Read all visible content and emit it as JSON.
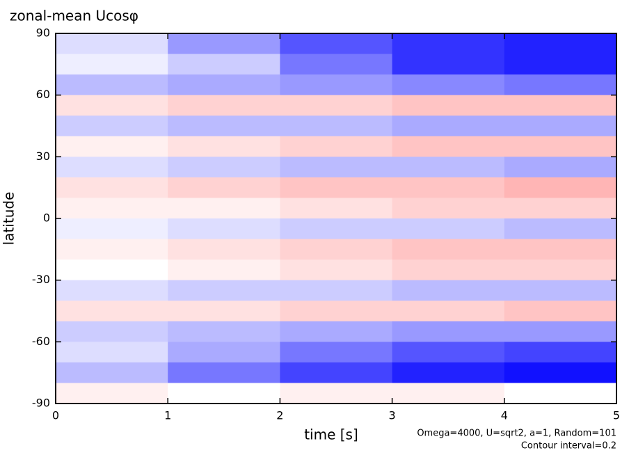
{
  "chart_data": {
    "type": "contour",
    "title": "zonal-mean Ucosφ",
    "xlabel": "time [s]",
    "ylabel": "latitude",
    "annotations": [
      "Omega=4000, U=sqrt2, a=1, Random=101",
      "Contour interval=0.2"
    ],
    "xlim": [
      0,
      5
    ],
    "xticks": [
      0,
      1,
      2,
      3,
      4,
      5
    ],
    "ylim": [
      -90,
      90
    ],
    "yticks": [
      -90,
      -60,
      -30,
      0,
      30,
      60,
      90
    ],
    "zlim": [
      -3,
      3
    ],
    "colors": [
      "#0000ff",
      "#ffffff",
      "#ff2020"
    ],
    "x": [
      0.5,
      1.5,
      2.5,
      3.5,
      4.5
    ],
    "y": [
      85,
      75,
      65,
      55,
      45,
      35,
      25,
      15,
      5,
      -5,
      -15,
      -25,
      -35,
      -45,
      -55,
      -65,
      -75,
      -85
    ],
    "z": [
      [
        -0.4,
        -1.2,
        -2.0,
        -2.4,
        -2.6
      ],
      [
        -0.2,
        -0.6,
        -1.6,
        -2.4,
        -2.6
      ],
      [
        -0.8,
        -1.0,
        -1.2,
        -1.4,
        -1.6
      ],
      [
        0.4,
        0.6,
        0.6,
        0.8,
        0.8
      ],
      [
        -0.6,
        -0.8,
        -0.8,
        -1.0,
        -1.0
      ],
      [
        0.2,
        0.4,
        0.6,
        0.8,
        0.8
      ],
      [
        -0.4,
        -0.6,
        -0.8,
        -0.8,
        -1.0
      ],
      [
        0.4,
        0.6,
        0.8,
        0.8,
        1.0
      ],
      [
        0.2,
        0.2,
        0.4,
        0.6,
        0.6
      ],
      [
        -0.2,
        -0.4,
        -0.6,
        -0.6,
        -0.8
      ],
      [
        0.2,
        0.4,
        0.6,
        0.8,
        0.8
      ],
      [
        0.0,
        0.2,
        0.4,
        0.6,
        0.6
      ],
      [
        -0.4,
        -0.6,
        -0.6,
        -0.8,
        -0.8
      ],
      [
        0.4,
        0.4,
        0.6,
        0.6,
        0.8
      ],
      [
        -0.6,
        -0.8,
        -1.0,
        -1.2,
        -1.2
      ],
      [
        -0.4,
        -1.0,
        -1.6,
        -2.0,
        -2.2
      ],
      [
        -0.8,
        -1.6,
        -2.2,
        -2.6,
        -2.8
      ],
      [
        0.2,
        0.0,
        0.2,
        0.2,
        0.0
      ]
    ]
  }
}
